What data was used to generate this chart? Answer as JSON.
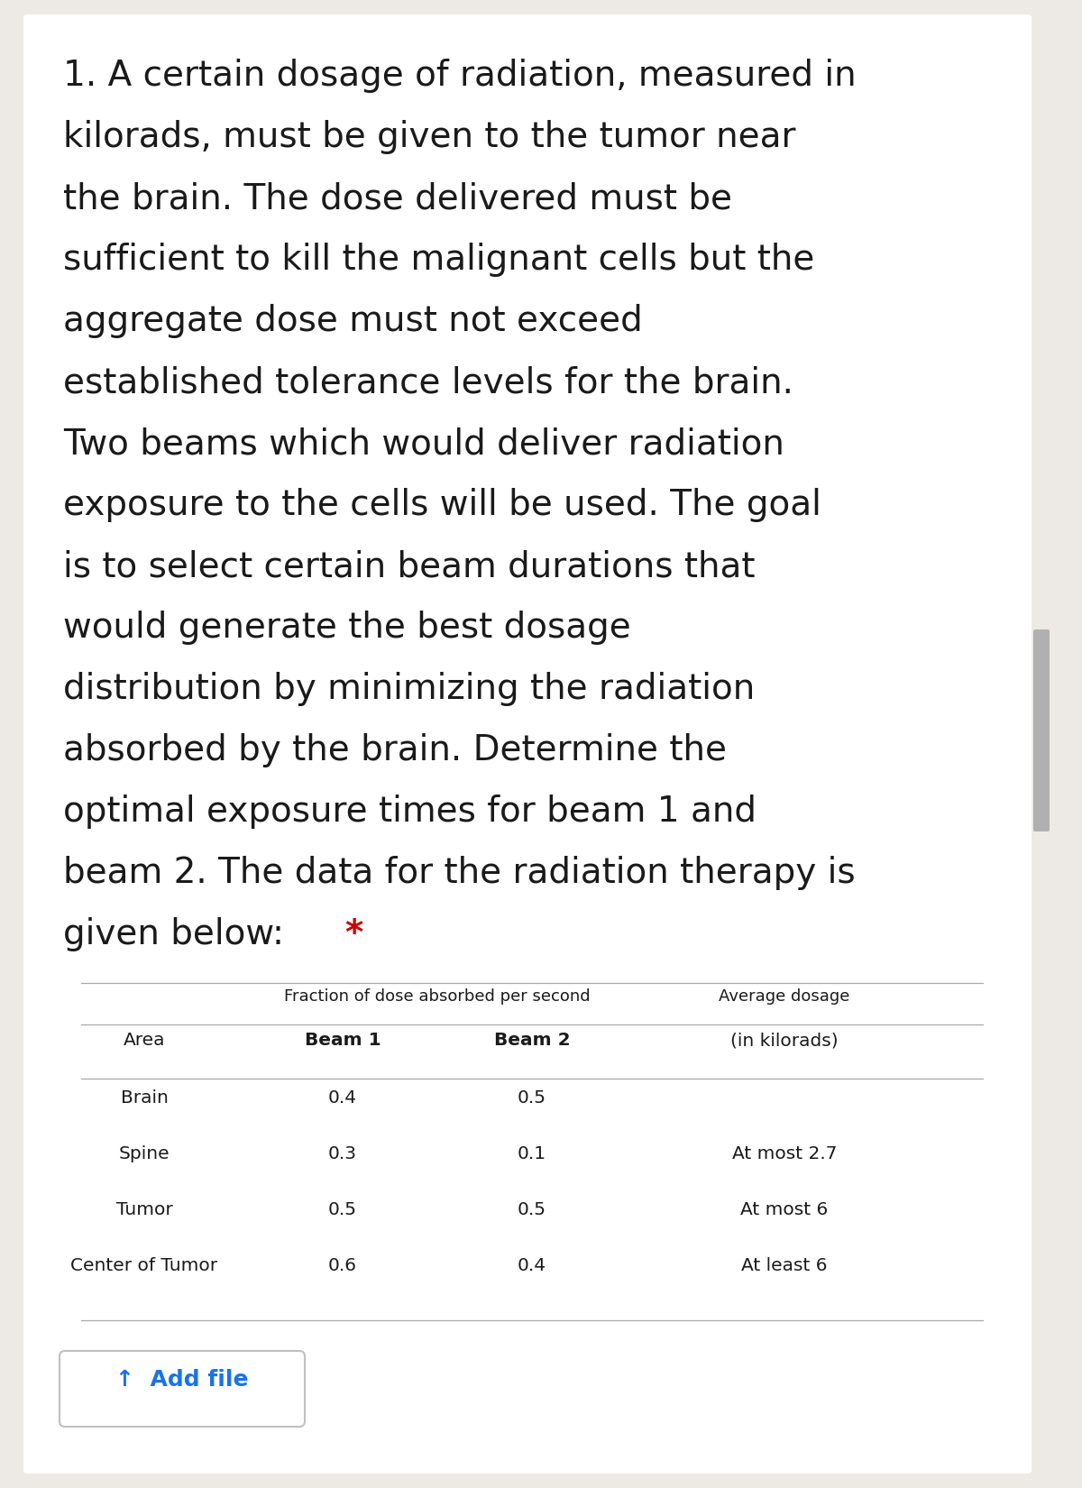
{
  "background_color": "#edeae6",
  "card_color": "#ffffff",
  "paragraph_number": "1.",
  "paragraph_lines": [
    "1. A certain dosage of radiation, measured in",
    "kilorads, must be given to the tumor near",
    "the brain. The dose delivered must be",
    "sufficient to kill the malignant cells but the",
    "aggregate dose must not exceed",
    "established tolerance levels for the brain.",
    "Two beams which would deliver radiation",
    "exposure to the cells will be used. The goal",
    "is to select certain beam durations that",
    "would generate the best dosage",
    "distribution by minimizing the radiation",
    "absorbed by the brain. Determine the",
    "optimal exposure times for beam 1 and",
    "beam 2. The data for the radiation therapy is",
    "given below: *"
  ],
  "last_line_plain": "given below: ",
  "asterisk": "*",
  "table_header_top": "Fraction of dose absorbed per second",
  "table_header_right": "Average dosage",
  "col_headers": [
    "Area",
    "Beam 1",
    "Beam 2",
    "(in kilorads)"
  ],
  "rows": [
    [
      "Brain",
      "0.4",
      "0.5",
      ""
    ],
    [
      "Spine",
      "0.3",
      "0.1",
      "At most 2.7"
    ],
    [
      "Tumor",
      "0.5",
      "0.5",
      "At most 6"
    ],
    [
      "Center of Tumor",
      "0.6",
      "0.4",
      "At least 6"
    ]
  ],
  "add_file_text": "Add file",
  "text_color": "#1a1a1a",
  "asterisk_color": "#cc0000",
  "add_file_color": "#1a73e8",
  "scrollbar_color": "#b0b0b0",
  "font_size_paragraph": 28,
  "font_size_table_small": 13,
  "font_size_table_header": 14.5,
  "font_size_add_file": 18
}
